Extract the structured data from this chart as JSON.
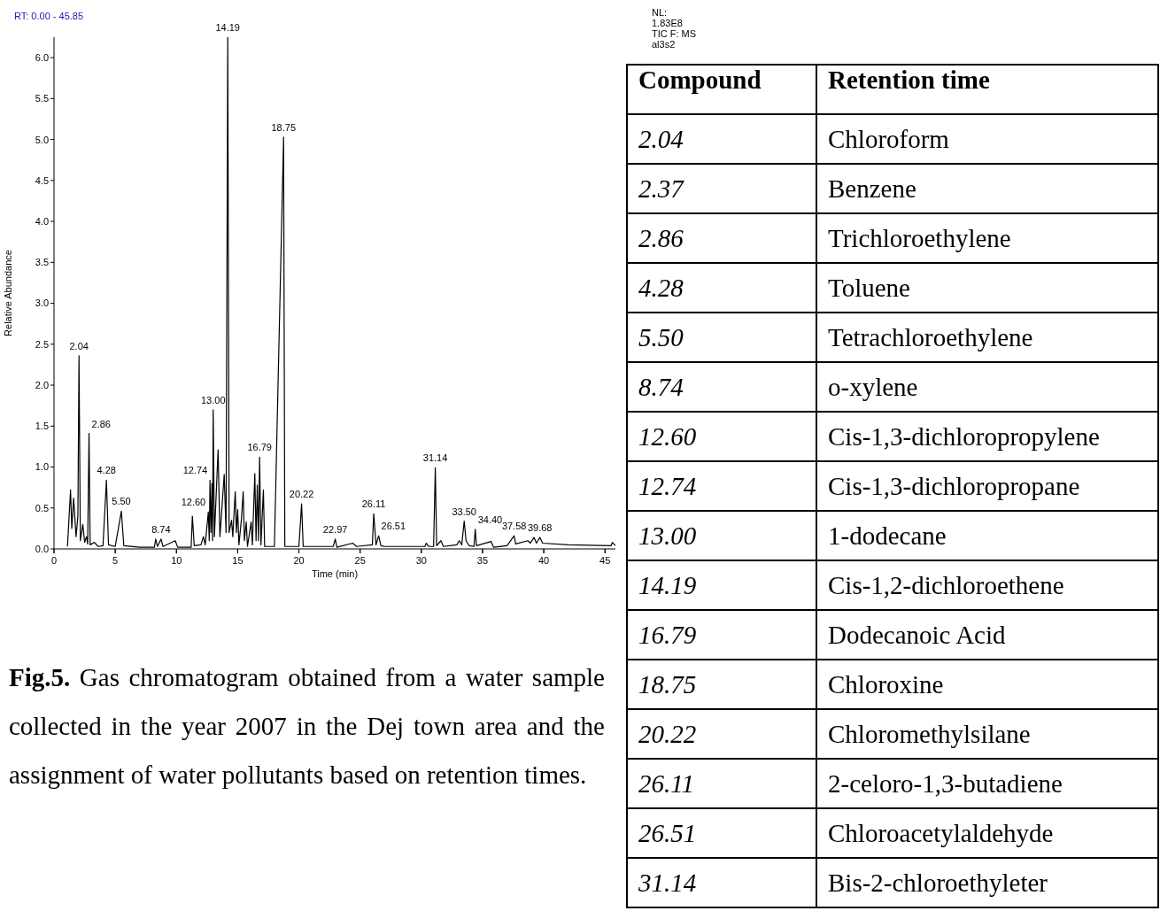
{
  "chart_data": [
    {
      "type": "line",
      "xlabel": "Time (min)",
      "ylabel": "Relative Abundance",
      "color": "#000000",
      "xlim": [
        0,
        45.85
      ],
      "ylim": [
        0,
        6.25
      ],
      "xticks": [
        0,
        5,
        10,
        15,
        20,
        25,
        30,
        35,
        40,
        45
      ],
      "yticks": [
        {
          "value": 0,
          "label": "0.0"
        },
        {
          "value": 0.5,
          "label": "0.5"
        },
        {
          "value": 1,
          "label": "1.0"
        },
        {
          "value": 1.5,
          "label": "1.5"
        },
        {
          "value": 2,
          "label": "2.0"
        },
        {
          "value": 2.5,
          "label": "2.5"
        },
        {
          "value": 3,
          "label": "3.0"
        },
        {
          "value": 3.5,
          "label": "3.5"
        },
        {
          "value": 4,
          "label": "4.0"
        },
        {
          "value": 4.5,
          "label": "4.5"
        },
        {
          "value": 5,
          "label": "5.0"
        },
        {
          "value": 5.5,
          "label": "5.5"
        },
        {
          "value": 6,
          "label": "6.0"
        }
      ],
      "x": [
        1.1,
        1.35,
        1.45,
        1.6,
        1.8,
        1.95,
        2.04,
        2.15,
        2.35,
        2.5,
        2.65,
        2.75,
        2.86,
        2.95,
        3.3,
        3.6,
        4.0,
        4.28,
        4.45,
        5.0,
        5.5,
        5.7,
        7.0,
        8.2,
        8.3,
        8.45,
        8.74,
        8.9,
        9.9,
        10.1,
        11.2,
        11.3,
        11.45,
        12.0,
        12.2,
        12.35,
        12.6,
        12.68,
        12.74,
        12.82,
        12.9,
        12.95,
        13.0,
        13.1,
        13.4,
        13.55,
        13.9,
        14.05,
        14.19,
        14.3,
        14.5,
        14.6,
        14.8,
        14.9,
        15.0,
        15.1,
        15.3,
        15.45,
        15.55,
        15.7,
        15.8,
        16.1,
        16.2,
        16.4,
        16.5,
        16.6,
        16.7,
        16.79,
        16.9,
        17.1,
        17.2,
        18.0,
        18.75,
        18.85,
        20.0,
        20.22,
        20.35,
        22.8,
        22.97,
        23.1,
        24.4,
        24.7,
        26.0,
        26.11,
        26.3,
        26.51,
        26.7,
        27.0,
        30.3,
        30.4,
        30.6,
        31.0,
        31.14,
        31.25,
        31.6,
        31.8,
        32.9,
        33.1,
        33.3,
        33.5,
        33.65,
        33.9,
        34.3,
        34.4,
        34.5,
        35.7,
        35.9,
        37.0,
        37.58,
        37.7,
        38.7,
        38.9,
        39.2,
        39.4,
        39.68,
        39.9,
        42.0,
        45.5,
        45.6,
        45.85
      ],
      "values": [
        0.03,
        0.72,
        0.25,
        0.62,
        0.15,
        0.4,
        2.36,
        0.1,
        0.3,
        0.08,
        0.15,
        0.06,
        1.41,
        0.05,
        0.08,
        0.03,
        0.04,
        0.84,
        0.05,
        0.03,
        0.46,
        0.04,
        0.02,
        0.02,
        0.12,
        0.03,
        0.12,
        0.03,
        0.1,
        0.02,
        0.02,
        0.4,
        0.04,
        0.05,
        0.15,
        0.05,
        0.45,
        0.1,
        0.84,
        0.2,
        0.8,
        0.1,
        1.7,
        0.15,
        1.21,
        0.15,
        0.91,
        0.2,
        6.25,
        0.2,
        0.35,
        0.15,
        0.7,
        0.2,
        0.48,
        0.05,
        0.35,
        0.7,
        0.1,
        0.33,
        0.03,
        0.33,
        0.05,
        0.92,
        0.1,
        0.78,
        0.1,
        1.12,
        0.05,
        0.72,
        0.03,
        0.03,
        5.03,
        0.03,
        0.03,
        0.55,
        0.03,
        0.03,
        0.12,
        0.02,
        0.07,
        0.03,
        0.05,
        0.43,
        0.05,
        0.16,
        0.04,
        0.03,
        0.03,
        0.07,
        0.03,
        0.03,
        0.99,
        0.04,
        0.1,
        0.03,
        0.05,
        0.1,
        0.05,
        0.34,
        0.1,
        0.04,
        0.03,
        0.24,
        0.04,
        0.09,
        0.02,
        0.04,
        0.16,
        0.06,
        0.1,
        0.07,
        0.14,
        0.07,
        0.14,
        0.07,
        0.05,
        0.04,
        0.08,
        0.04
      ],
      "annotations": [
        {
          "text": "2.04",
          "x": 2.04,
          "y": 2.36
        },
        {
          "text": "2.86",
          "x": 2.86,
          "y": 1.41
        },
        {
          "text": "4.28",
          "x": 4.28,
          "y": 0.84
        },
        {
          "text": "5.50",
          "x": 5.5,
          "y": 0.46
        },
        {
          "text": "8.74",
          "x": 8.74,
          "y": 0.12
        },
        {
          "text": "12.60",
          "x": 12.6,
          "y": 0.45
        },
        {
          "text": "12.74",
          "x": 12.74,
          "y": 0.84
        },
        {
          "text": "13.00",
          "x": 13.0,
          "y": 1.7
        },
        {
          "text": "14.19",
          "x": 14.19,
          "y": 6.25
        },
        {
          "text": "16.79",
          "x": 16.79,
          "y": 1.12
        },
        {
          "text": "18.75",
          "x": 18.75,
          "y": 5.03
        },
        {
          "text": "20.22",
          "x": 20.22,
          "y": 0.55
        },
        {
          "text": "22.97",
          "x": 22.97,
          "y": 0.12
        },
        {
          "text": "26.11",
          "x": 26.11,
          "y": 0.43
        },
        {
          "text": "26.51",
          "x": 26.51,
          "y": 0.16
        },
        {
          "text": "31.14",
          "x": 31.14,
          "y": 0.99
        },
        {
          "text": "33.50",
          "x": 33.5,
          "y": 0.34
        },
        {
          "text": "34.40",
          "x": 34.4,
          "y": 0.24
        },
        {
          "text": "37.58",
          "x": 37.58,
          "y": 0.16
        },
        {
          "text": "39.68",
          "x": 39.68,
          "y": 0.14
        },
        "RT: 0.00 - 45.85",
        "NL:",
        "1.83E8",
        "TIC F: MS",
        "al3s2",
        "Fig.5. Gas chromatogram obtained from a water sample collected in the year 2007 in the Dej town area and the assignment of water pollutants based on retention times."
      ]
    },
    {
      "type": "other",
      "annotations": [
        "Compound",
        "Retention time",
        "2.04",
        "Chloroform",
        "2.37",
        "Benzene",
        "2.86",
        "Trichloroethylene",
        "4.28",
        "Toluene",
        "5.50",
        "Tetrachloroethylene",
        "8.74",
        "o-xylene",
        "12.60",
        "Cis-1,3-dichloropropylene",
        "12.74",
        "Cis-1,3-dichloropropane",
        "13.00",
        "1-dodecane",
        "14.19",
        "Cis-1,2-dichloroethene",
        "16.79",
        "Dodecanoic Acid",
        "18.75",
        "Chloroxine",
        "20.22",
        "Chloromethylsilane",
        "26.11",
        "2-celoro-1,3-butadiene",
        "26.51",
        "Chloroacetylaldehyde",
        "31.14",
        "Bis-2-chloroethyleter"
      ]
    }
  ]
}
